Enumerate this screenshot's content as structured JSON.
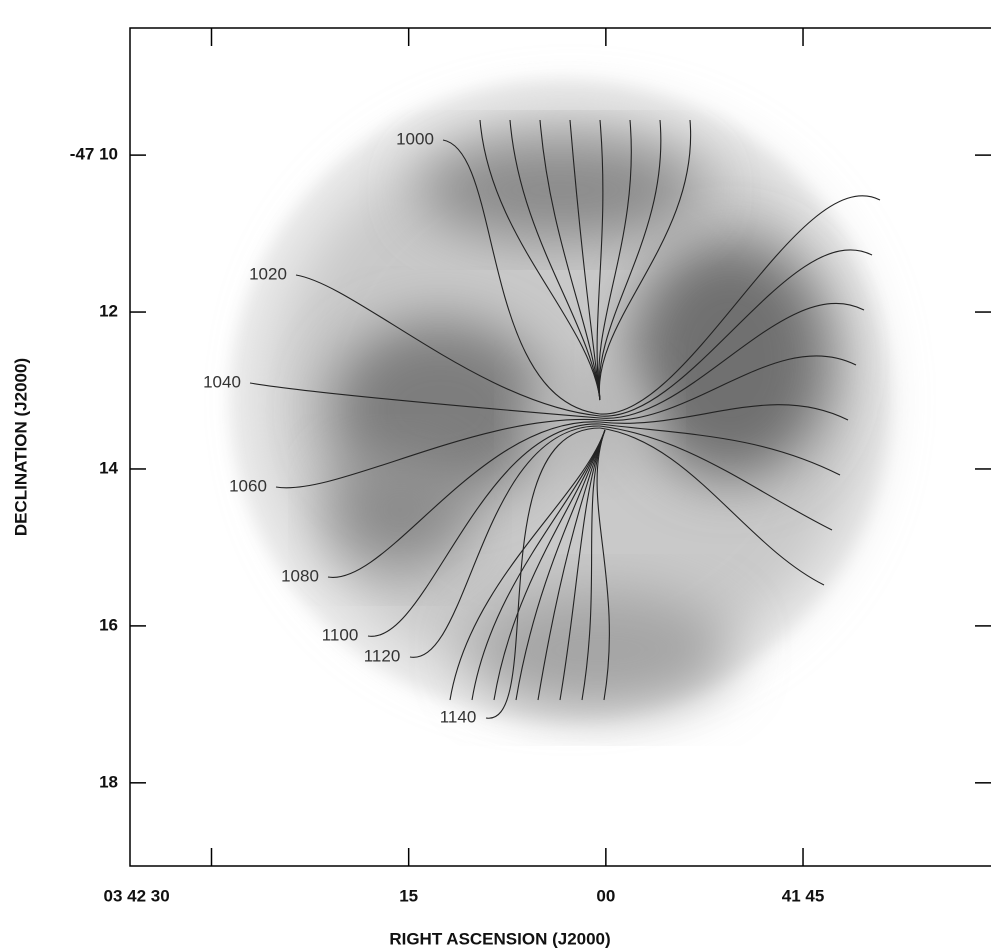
{
  "chart_data": {
    "type": "image",
    "xlabel": "RIGHT ASCENSION (J2000)",
    "ylabel": "DECLINATION (J2000)",
    "xlim": [
      96.2,
      30.7
    ],
    "xticks": [
      {
        "value": 90,
        "label": "03 42 30"
      },
      {
        "value": 75,
        "label": "15"
      },
      {
        "value": 60,
        "label": "00"
      },
      {
        "value": 45,
        "label": "41 45"
      }
    ],
    "ylim": [
      19.06,
      8.38
    ],
    "yticks": [
      {
        "value": 10,
        "label": "-47 10"
      },
      12,
      14,
      16,
      18
    ],
    "contour_levels": [
      1000,
      1020,
      1040,
      1060,
      1080,
      1100,
      1120,
      1140
    ]
  }
}
